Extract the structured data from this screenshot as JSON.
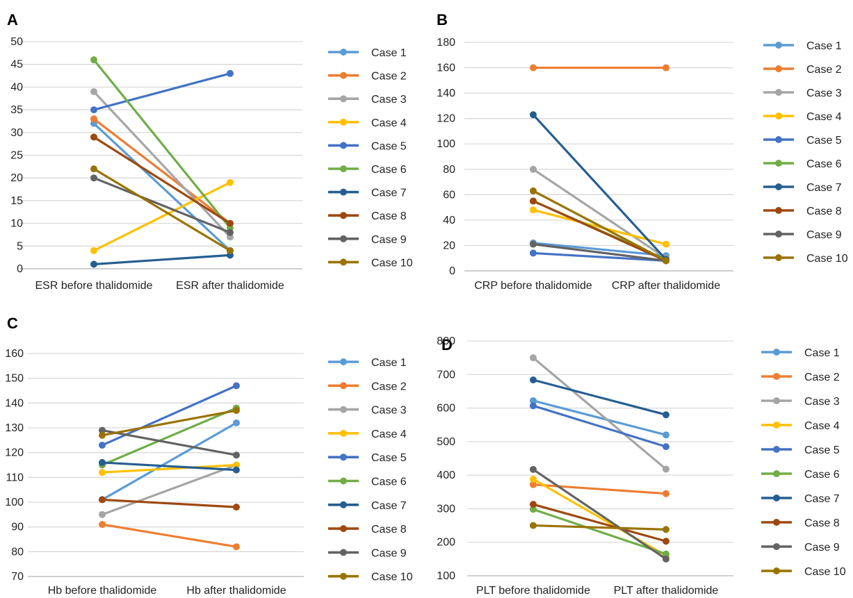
{
  "colors": {
    "Case 1": "#5b9bd5",
    "Case 2": "#ed7d31",
    "Case 3": "#a5a5a5",
    "Case 4": "#ffc000",
    "Case 5": "#4472c4",
    "Case 6": "#70ad47",
    "Case 7": "#255e91",
    "Case 8": "#9e480e",
    "Case 9": "#636363",
    "Case 10": "#997300"
  },
  "chart_data": [
    {
      "panel": "A",
      "type": "line",
      "categories": [
        "ESR before thalidomide",
        "ESR after thalidomide"
      ],
      "ylim": [
        0,
        50
      ],
      "yticks": [
        0,
        5,
        10,
        15,
        20,
        25,
        30,
        35,
        40,
        45,
        50
      ],
      "grid": true,
      "legend": "right",
      "series": [
        {
          "name": "Case 1",
          "values": [
            32,
            4
          ]
        },
        {
          "name": "Case 2",
          "values": [
            33,
            10
          ]
        },
        {
          "name": "Case 3",
          "values": [
            39,
            7
          ]
        },
        {
          "name": "Case 4",
          "values": [
            4,
            19
          ]
        },
        {
          "name": "Case 5",
          "values": [
            35,
            43
          ]
        },
        {
          "name": "Case 6",
          "values": [
            46,
            9
          ]
        },
        {
          "name": "Case 7",
          "values": [
            1,
            3
          ]
        },
        {
          "name": "Case 8",
          "values": [
            29,
            10
          ]
        },
        {
          "name": "Case 9",
          "values": [
            20,
            8
          ]
        },
        {
          "name": "Case 10",
          "values": [
            22,
            4
          ]
        }
      ]
    },
    {
      "panel": "B",
      "type": "line",
      "categories": [
        "CRP before thalidomide",
        "CRP after thalidomide"
      ],
      "ylim": [
        0,
        180
      ],
      "yticks": [
        0,
        20,
        40,
        60,
        80,
        100,
        120,
        140,
        160,
        180
      ],
      "grid": true,
      "legend": "right",
      "series": [
        {
          "name": "Case 1",
          "values": [
            22,
            12
          ]
        },
        {
          "name": "Case 2",
          "values": [
            160,
            160
          ]
        },
        {
          "name": "Case 3",
          "values": [
            80,
            10
          ]
        },
        {
          "name": "Case 4",
          "values": [
            48,
            21
          ]
        },
        {
          "name": "Case 5",
          "values": [
            14,
            8
          ]
        },
        {
          "name": "Case 6",
          "values": [
            55,
            9
          ]
        },
        {
          "name": "Case 7",
          "values": [
            123,
            9
          ]
        },
        {
          "name": "Case 8",
          "values": [
            55,
            8
          ]
        },
        {
          "name": "Case 9",
          "values": [
            21,
            8
          ]
        },
        {
          "name": "Case 10",
          "values": [
            63,
            8
          ]
        }
      ]
    },
    {
      "panel": "C",
      "type": "line",
      "categories": [
        "Hb before thalidomide",
        "Hb after thalidomide"
      ],
      "ylim": [
        70,
        160
      ],
      "yticks": [
        70,
        80,
        90,
        100,
        110,
        120,
        130,
        140,
        150,
        160
      ],
      "grid": true,
      "legend": "right",
      "series": [
        {
          "name": "Case 1",
          "values": [
            101,
            132
          ]
        },
        {
          "name": "Case 2",
          "values": [
            91,
            82
          ]
        },
        {
          "name": "Case 3",
          "values": [
            95,
            115
          ]
        },
        {
          "name": "Case 4",
          "values": [
            112,
            115
          ]
        },
        {
          "name": "Case 5",
          "values": [
            123,
            147
          ]
        },
        {
          "name": "Case 6",
          "values": [
            115,
            138
          ]
        },
        {
          "name": "Case 7",
          "values": [
            116,
            113
          ]
        },
        {
          "name": "Case 8",
          "values": [
            101,
            98
          ]
        },
        {
          "name": "Case 9",
          "values": [
            129,
            119
          ]
        },
        {
          "name": "Case 10",
          "values": [
            127,
            137
          ]
        }
      ]
    },
    {
      "panel": "D",
      "type": "line",
      "categories": [
        "PLT before thalidomide",
        "PLT after thalidomide"
      ],
      "ylim": [
        100,
        800
      ],
      "yticks": [
        100,
        200,
        300,
        400,
        500,
        600,
        700,
        800
      ],
      "grid": true,
      "legend": "right",
      "series": [
        {
          "name": "Case 1",
          "values": [
            622,
            520
          ]
        },
        {
          "name": "Case 2",
          "values": [
            372,
            345
          ]
        },
        {
          "name": "Case 3",
          "values": [
            750,
            418
          ]
        },
        {
          "name": "Case 4",
          "values": [
            388,
            160
          ]
        },
        {
          "name": "Case 5",
          "values": [
            607,
            485
          ]
        },
        {
          "name": "Case 6",
          "values": [
            298,
            165
          ]
        },
        {
          "name": "Case 7",
          "values": [
            684,
            580
          ]
        },
        {
          "name": "Case 8",
          "values": [
            313,
            203
          ]
        },
        {
          "name": "Case 9",
          "values": [
            417,
            150
          ]
        },
        {
          "name": "Case 10",
          "values": [
            250,
            238
          ]
        }
      ]
    }
  ]
}
